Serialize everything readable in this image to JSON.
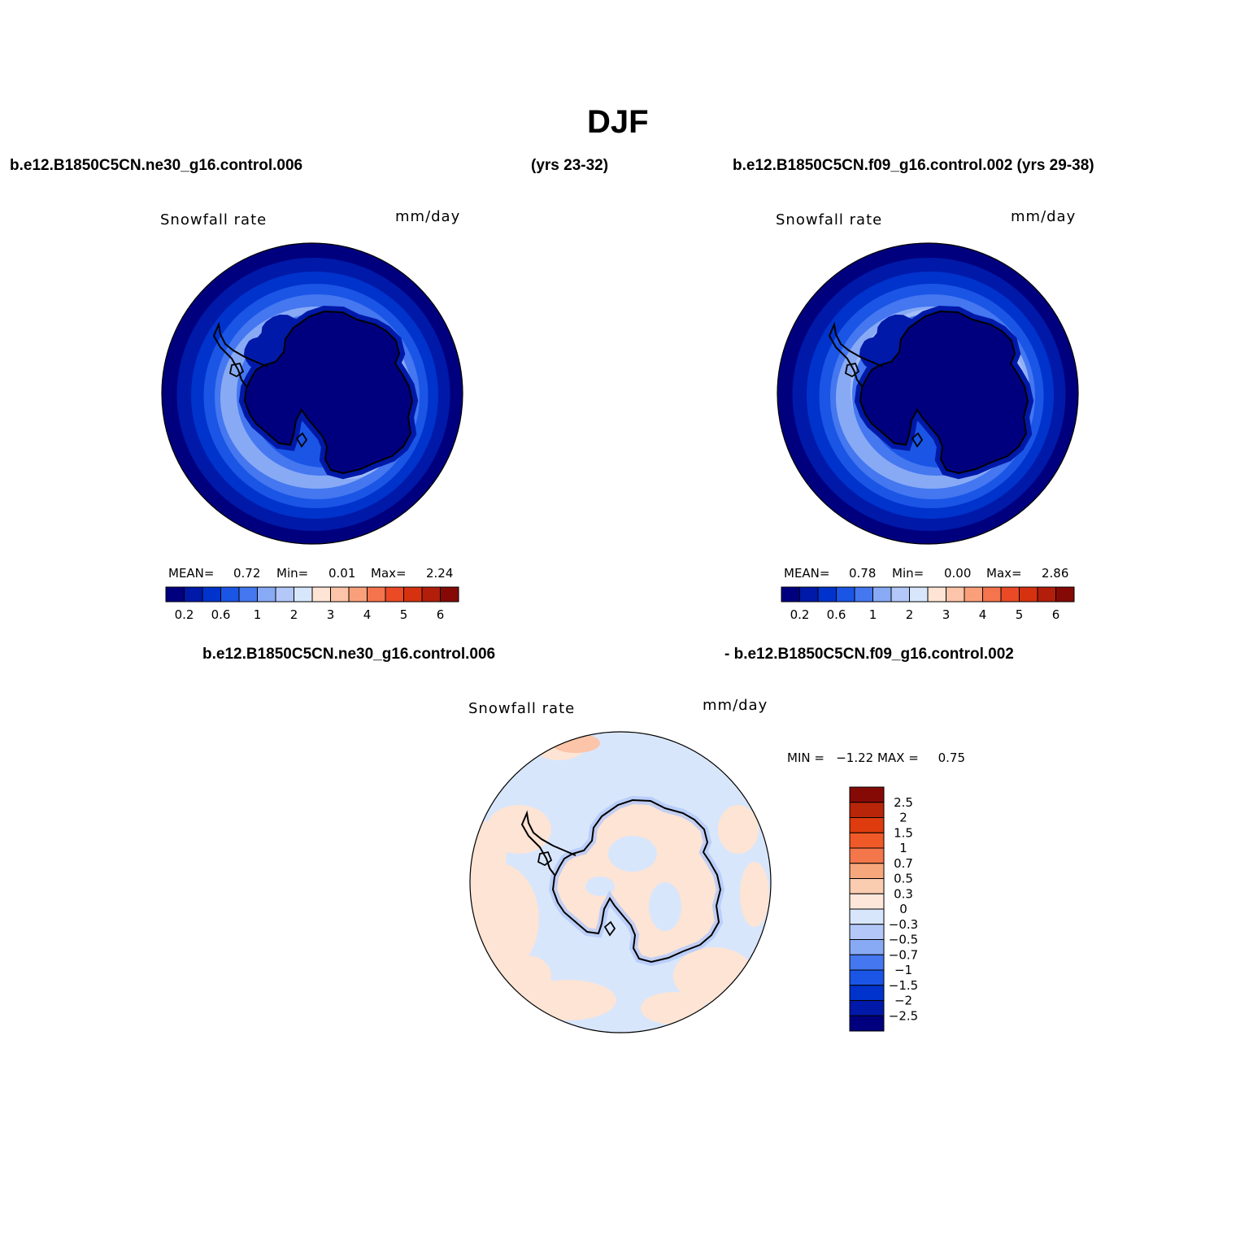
{
  "title": "DJF",
  "case_a": "b.e12.B1850C5CN.ne30_g16.control.006",
  "case_a_years": "(yrs 23-32)",
  "case_b": "b.e12.B1850C5CN.f09_g16.control.002 (yrs 29-38)",
  "diff_case_a": "b.e12.B1850C5CN.ne30_g16.control.006",
  "diff_case_b": "- b.e12.B1850C5CN.f09_g16.control.002",
  "panels": [
    {
      "variable": "Snowfall rate",
      "units": "mm/day",
      "mean_label": "MEAN=",
      "mean": "0.72",
      "min_label": "Min=",
      "min": "0.01",
      "max_label": "Max=",
      "max": "2.24"
    },
    {
      "variable": "Snowfall rate",
      "units": "mm/day",
      "mean_label": "MEAN=",
      "mean": "0.78",
      "min_label": "Min=",
      "min": "0.00",
      "max_label": "Max=",
      "max": "2.86"
    }
  ],
  "diff_panel": {
    "variable": "Snowfall rate",
    "units": "mm/day",
    "minmax_text": "MIN =   −1.22 MAX =     0.75"
  },
  "colorbar_abs": {
    "colors": [
      "#00007f",
      "#0019a8",
      "#0033cc",
      "#1a55e6",
      "#4477f0",
      "#88aaf5",
      "#b3c8f9",
      "#d8e6fc",
      "#fde4d4",
      "#fcc4a8",
      "#f9a07a",
      "#f3744d",
      "#ea4a25",
      "#d6320f",
      "#b21e0a",
      "#850a06"
    ],
    "tick_labels": [
      "0.2",
      "0.6",
      "1",
      "2",
      "3",
      "4",
      "5",
      "6"
    ],
    "tick_after_box": [
      1,
      3,
      5,
      7,
      9,
      11,
      13,
      15
    ]
  },
  "colorbar_diff": {
    "colors_top_to_bottom": [
      "#850a06",
      "#b82508",
      "#de3c0e",
      "#f05a28",
      "#f3774a",
      "#f7a77c",
      "#fbcdb0",
      "#fde7da",
      "#d8e6fc",
      "#b3c8f9",
      "#88aaf5",
      "#4477f0",
      "#1a55e6",
      "#0033cc",
      "#0019a8",
      "#00007f"
    ],
    "tick_labels": [
      "2.5",
      "2",
      "1.5",
      "1",
      "0.7",
      "0.5",
      "0.3",
      "0",
      "−0.3",
      "−0.5",
      "−0.7",
      "−1",
      "−1.5",
      "−2",
      "−2.5"
    ]
  },
  "map_colors": {
    "abs_levels": [
      "#00007f",
      "#0019a8",
      "#0033cc",
      "#1a55e6",
      "#4477f0",
      "#88aaf5",
      "#b3c8f9"
    ],
    "diff_neg": "#d8e6fc",
    "diff_pos": "#fde4d4",
    "diff_neg2": "#b3c8f9",
    "diff_pos2": "#fcc4a8"
  }
}
